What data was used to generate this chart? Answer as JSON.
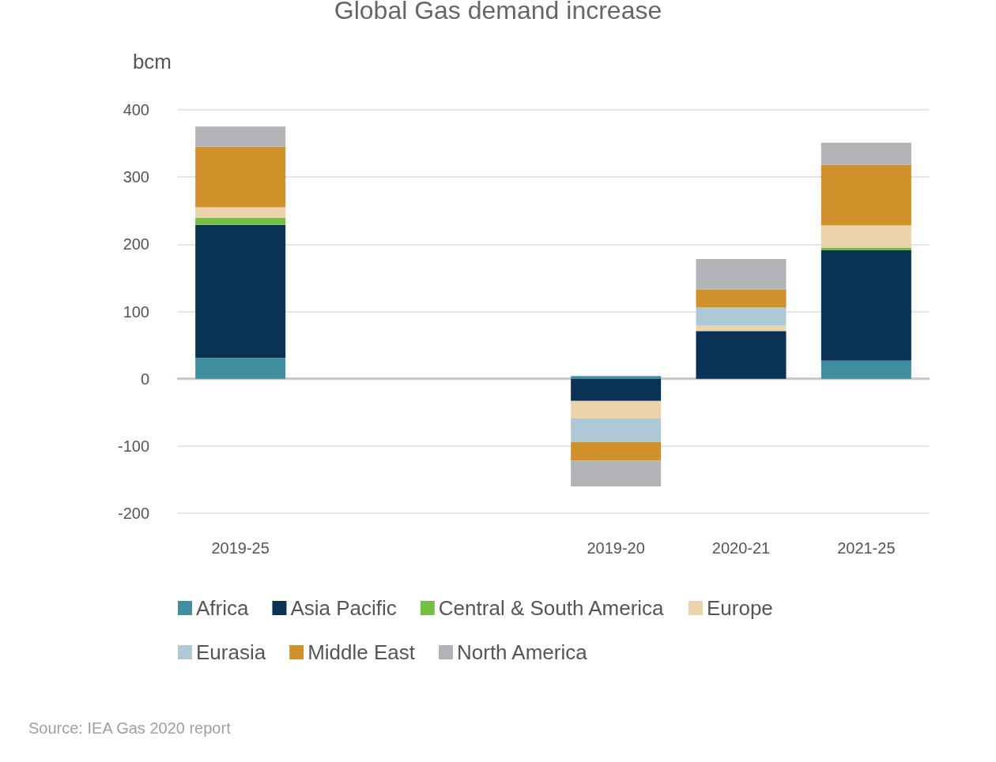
{
  "chart_data": {
    "type": "bar",
    "title": "Global Gas demand increase",
    "ylabel": "bcm",
    "stacked": true,
    "categories": [
      "2019-25",
      null,
      null,
      "2019-20",
      "2020-21",
      "2021-25"
    ],
    "series": [
      {
        "name": "Africa",
        "color": "#3f8fa0",
        "values": [
          31,
          null,
          null,
          4,
          null,
          27
        ]
      },
      {
        "name": "Asia Pacific",
        "color": "#0a3254",
        "values": [
          198,
          null,
          null,
          -33,
          71,
          164
        ]
      },
      {
        "name": "Central & South America",
        "color": "#72bf44",
        "values": [
          10,
          null,
          null,
          null,
          null,
          4
        ]
      },
      {
        "name": "Europe",
        "color": "#ecd3ab",
        "values": [
          16,
          null,
          null,
          -26,
          8,
          33
        ]
      },
      {
        "name": "Eurasia",
        "color": "#aec9d6",
        "values": [
          null,
          null,
          null,
          -35,
          27,
          null
        ]
      },
      {
        "name": "Middle East",
        "color": "#d0912a",
        "values": [
          90,
          null,
          null,
          -28,
          27,
          90
        ]
      },
      {
        "name": "North America",
        "color": "#b1b3b6",
        "values": [
          30,
          null,
          null,
          -38,
          45,
          33
        ]
      }
    ],
    "ylim": [
      -200,
      400
    ],
    "yticks": [
      -200,
      -100,
      0,
      100,
      200,
      300,
      400
    ],
    "grid": "y",
    "legend": "bottom",
    "annotations": [
      "Source: IEA Gas 2020 report"
    ]
  }
}
